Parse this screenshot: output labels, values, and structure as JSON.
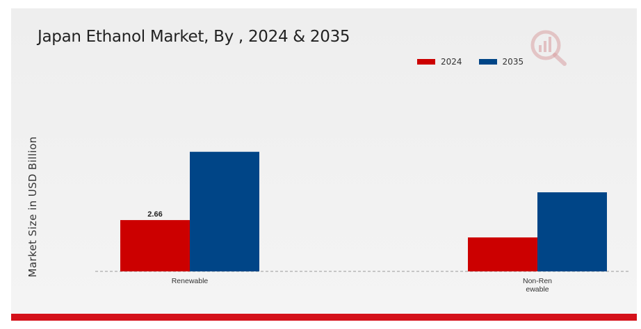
{
  "chart_data": {
    "type": "bar",
    "title": "Japan Ethanol Market, By , 2024 & 2035",
    "xlabel": "",
    "ylabel": "Market Size in USD Billion",
    "categories": [
      "Renewable",
      "Non-Ren\newable"
    ],
    "series": [
      {
        "name": "2024",
        "color": "#cc0000",
        "values": [
          2.66,
          1.76
        ]
      },
      {
        "name": "2035",
        "color": "#004587",
        "values": [
          6.2,
          4.1
        ]
      }
    ],
    "data_labels": [
      {
        "series": "2024",
        "category": "Renewable",
        "text": "2.66"
      }
    ],
    "ylim": [
      0,
      8.6
    ],
    "grid": false,
    "baseline": "dashed",
    "legend_position": "top-right"
  },
  "colors": {
    "accent": "#d4111a",
    "series_2024": "#cc0000",
    "series_2035": "#004587"
  },
  "watermark_icon": "market-research-logo-icon"
}
